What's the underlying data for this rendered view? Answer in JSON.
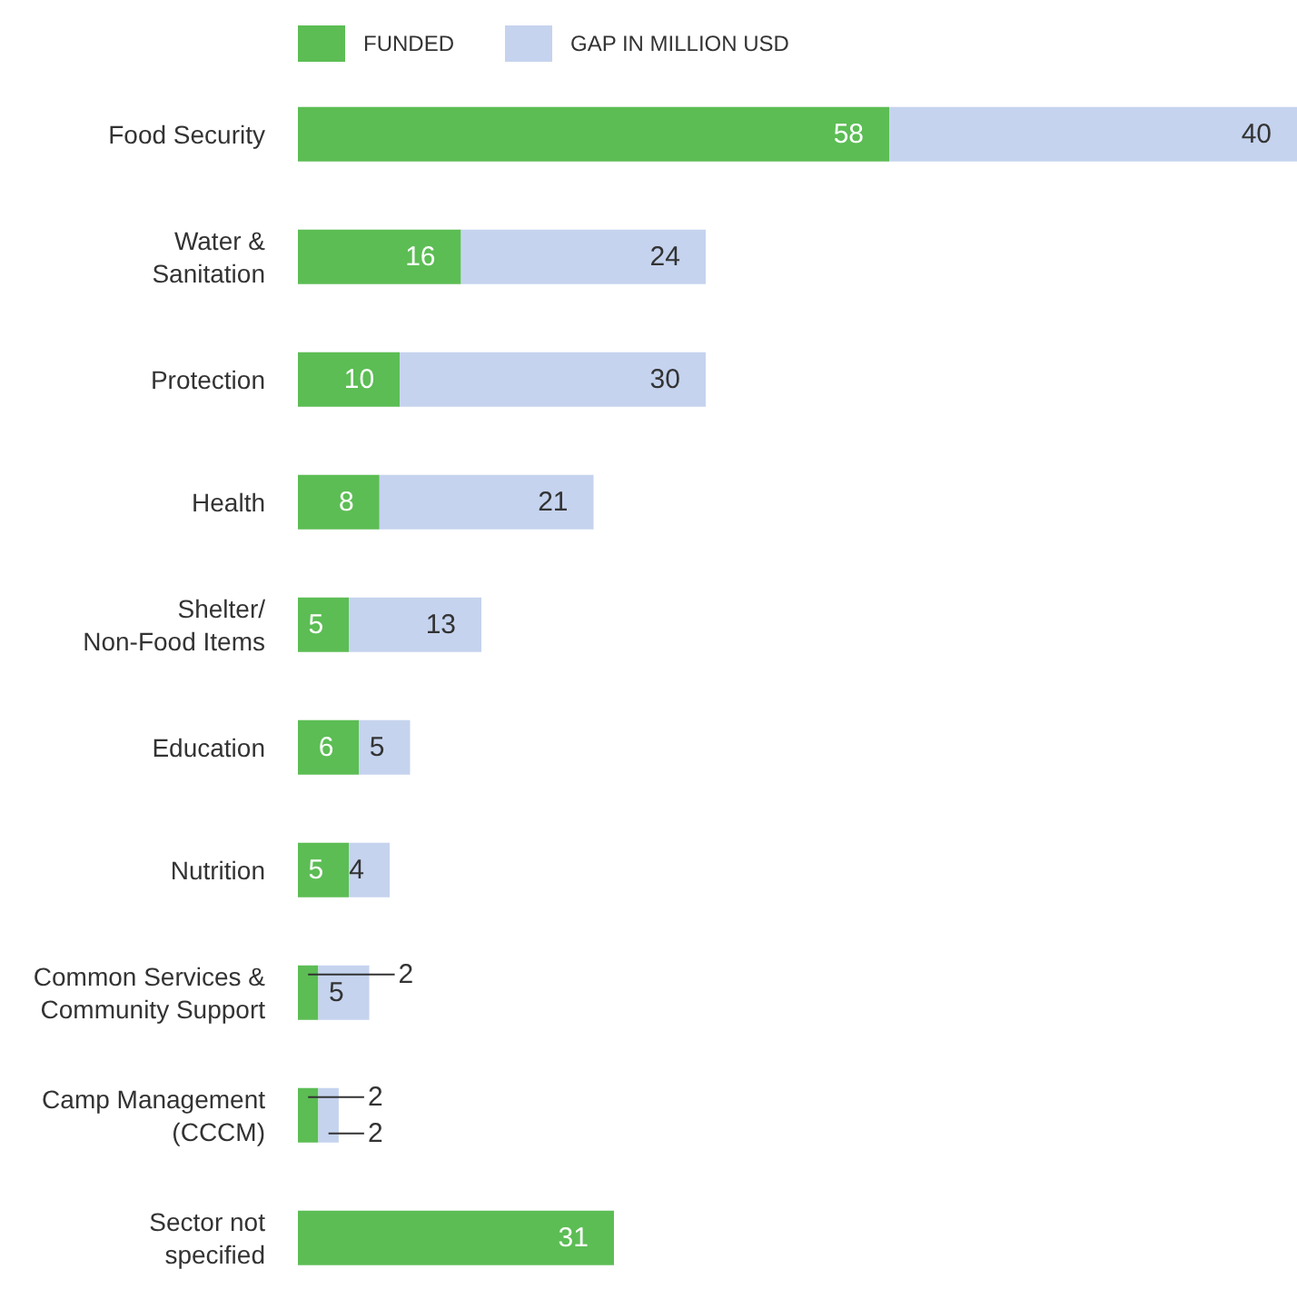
{
  "chart_data": {
    "type": "bar",
    "orientation": "horizontal",
    "stacked": true,
    "legend": "top",
    "data_labels": true,
    "categories": [
      "Food Security",
      "Water &\nSanitation",
      "Protection",
      "Health",
      "Shelter/\nNon-Food Items",
      "Education",
      "Nutrition",
      "Common Services &\nCommunity Support",
      "Camp Management\n(CCCM)",
      "Sector not\nspecified"
    ],
    "series": [
      {
        "name": "FUNDED",
        "color": "#5cbd54",
        "values": [
          58,
          16,
          10,
          8,
          5,
          6,
          5,
          2,
          2,
          31
        ]
      },
      {
        "name": "GAP IN MILLION USD",
        "color": "#c5d3ee",
        "values": [
          40,
          24,
          30,
          21,
          13,
          5,
          4,
          5,
          2,
          null
        ]
      }
    ]
  }
}
